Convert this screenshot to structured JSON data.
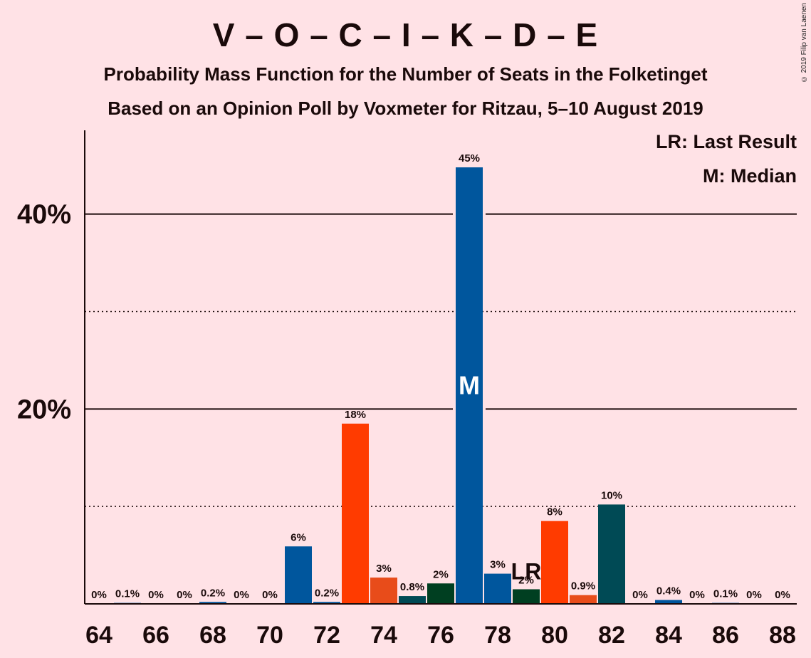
{
  "title": "V – O – C – I – K – D – E",
  "subtitle1": "Probability Mass Function for the Number of Seats in the Folketinget",
  "subtitle2": "Based on an Opinion Poll by Voxmeter for Ritzau, 5–10 August 2019",
  "copyright": "© 2019 Filip van Laenen",
  "legend": {
    "lr": "LR: Last Result",
    "m": "M: Median"
  },
  "chart_data": {
    "type": "bar",
    "x": [
      64,
      65,
      66,
      67,
      68,
      69,
      70,
      71,
      72,
      73,
      74,
      75,
      76,
      77,
      78,
      79,
      80,
      81,
      82,
      83,
      84,
      85,
      86,
      87,
      88
    ],
    "values": [
      0,
      0.1,
      0,
      0,
      0.2,
      0,
      0,
      5.9,
      0.2,
      18.5,
      2.7,
      0.8,
      2.1,
      44.8,
      3.1,
      1.5,
      8.5,
      0.9,
      10.2,
      0,
      0.4,
      0,
      0.1,
      0,
      0
    ],
    "data_labels": [
      "0%",
      "0.1%",
      "0%",
      "0%",
      "0.2%",
      "0%",
      "0%",
      "6%",
      "0.2%",
      "18%",
      "3%",
      "0.8%",
      "2%",
      "45%",
      "3%",
      "2%",
      "8%",
      "0.9%",
      "10%",
      "0%",
      "0.4%",
      "0%",
      "0.1%",
      "0%",
      "0%"
    ],
    "bar_colors": [
      "#00569D",
      "#00569D",
      "#00569D",
      "#00569D",
      "#00569D",
      "#00569D",
      "#00569D",
      "#00569D",
      "#00569D",
      "#FF3B00",
      "#E84C1A",
      "#004A55",
      "#003F21",
      "#00569D",
      "#00569D",
      "#003F21",
      "#FF3B00",
      "#E84C1A",
      "#004A55",
      "#00569D",
      "#00569D",
      "#00569D",
      "#00569D",
      "#00569D",
      "#00569D"
    ],
    "x_ticks": [
      64,
      66,
      68,
      70,
      72,
      74,
      76,
      78,
      80,
      82,
      84,
      86,
      88
    ],
    "y_ticks": [
      {
        "value": 20,
        "label": "20%"
      },
      {
        "value": 40,
        "label": "40%"
      }
    ],
    "dotted_lines": [
      10,
      30
    ],
    "ylim": [
      0,
      48.6
    ],
    "median": {
      "x": 77,
      "label": "M"
    },
    "last_result": {
      "x": 79,
      "label": "LR"
    }
  }
}
